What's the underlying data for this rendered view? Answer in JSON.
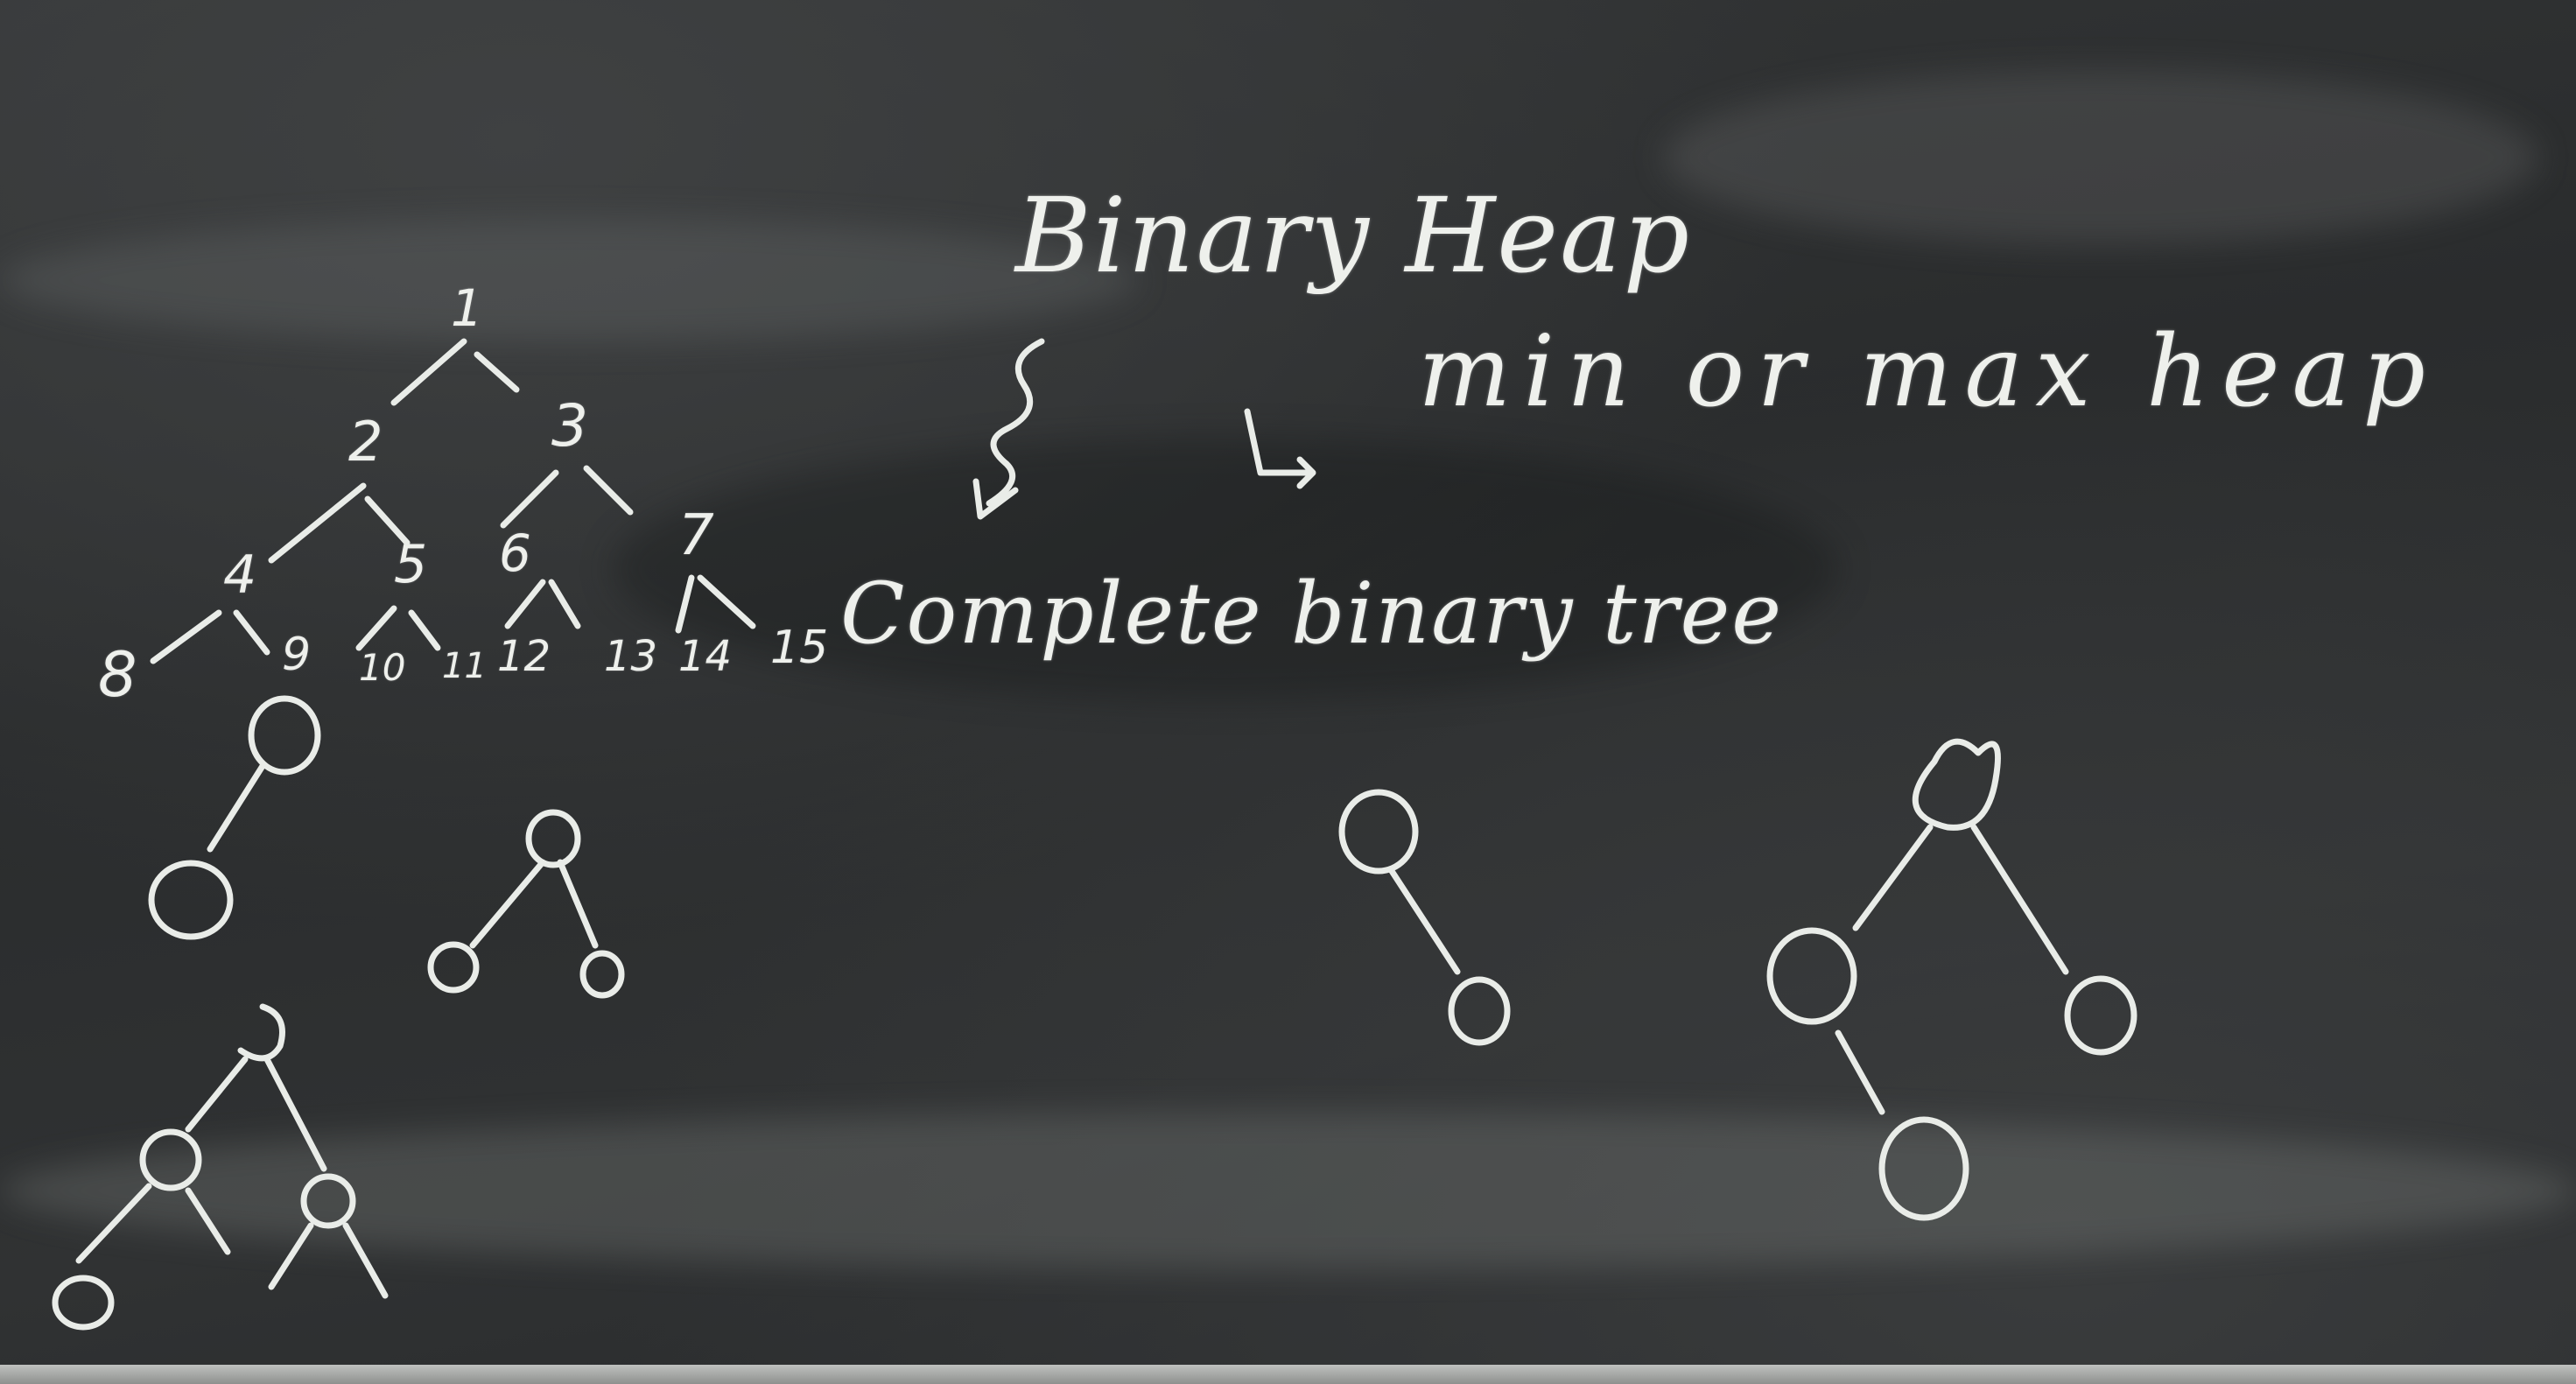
{
  "board": {
    "title": "Binary Heap",
    "subtitle": "min or max heap",
    "description": "Complete binary tree",
    "tree_labels": [
      "1",
      "2",
      "3",
      "4",
      "5",
      "6",
      "7",
      "8",
      "9",
      "10",
      "11",
      "12",
      "13",
      "14",
      "15"
    ]
  },
  "colors": {
    "board": "#2c2d2e",
    "chalk": "#e9ece8",
    "tray": "#a5a7a5"
  }
}
